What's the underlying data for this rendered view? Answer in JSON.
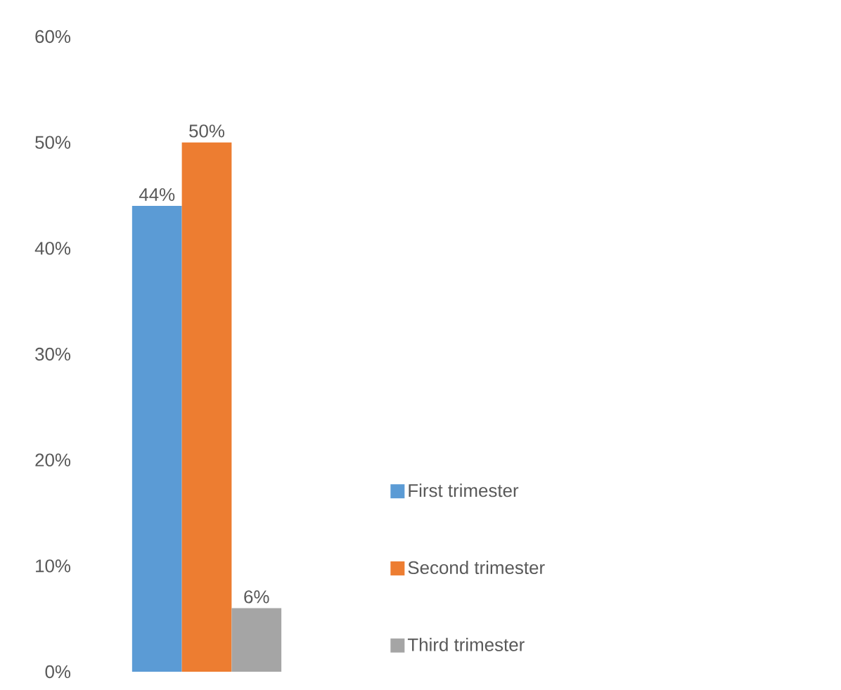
{
  "chart_data": {
    "type": "bar",
    "categories": [
      null
    ],
    "series": [
      {
        "name": "First trimester",
        "color": "#5b9bd5",
        "values": [
          44
        ],
        "value_labels": [
          "44%"
        ]
      },
      {
        "name": "Second trimester",
        "color": "#ed7d31",
        "values": [
          50
        ],
        "value_labels": [
          "50%"
        ]
      },
      {
        "name": "Third trimester",
        "color": "#a5a5a5",
        "values": [
          6
        ],
        "value_labels": [
          "6%"
        ]
      }
    ],
    "ylim": [
      0,
      60
    ],
    "yticks": [
      {
        "value": 0,
        "label": "0%"
      },
      {
        "value": 10,
        "label": "10%"
      },
      {
        "value": 20,
        "label": "20%"
      },
      {
        "value": 30,
        "label": "30%"
      },
      {
        "value": 40,
        "label": "40%"
      },
      {
        "value": 50,
        "label": "50%"
      },
      {
        "value": 60,
        "label": "60%"
      }
    ],
    "legend": "right",
    "grid": false
  }
}
